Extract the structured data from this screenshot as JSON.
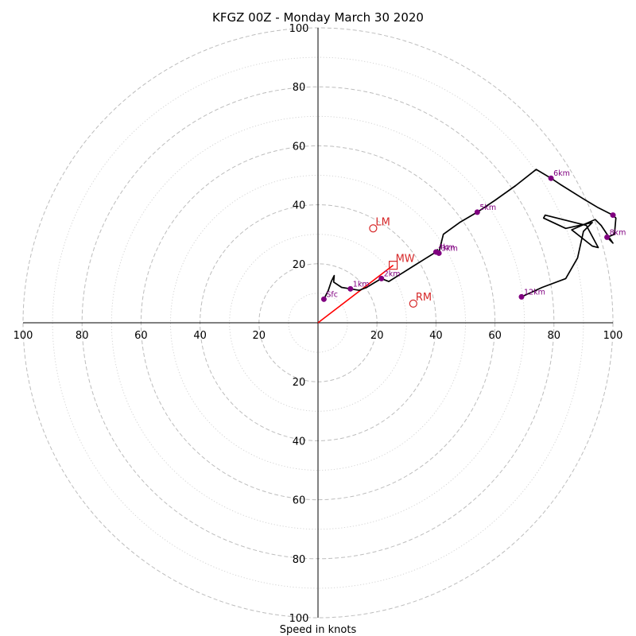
{
  "chart_data": {
    "type": "hodograph",
    "title": "KFGZ 00Z - Monday March 30 2020",
    "xlabel": "Speed in knots",
    "axis_range": [
      -100,
      100
    ],
    "units": "knots",
    "grid": true,
    "tick_labels": [
      "100",
      "80",
      "60",
      "40",
      "20",
      "20",
      "40",
      "60",
      "80",
      "100"
    ],
    "rings": [
      {
        "r": 10,
        "style": "dotted"
      },
      {
        "r": 20,
        "style": "dashed"
      },
      {
        "r": 30,
        "style": "dotted"
      },
      {
        "r": 40,
        "style": "dashed"
      },
      {
        "r": 50,
        "style": "dotted"
      },
      {
        "r": 60,
        "style": "dashed"
      },
      {
        "r": 70,
        "style": "dotted"
      },
      {
        "r": 80,
        "style": "dashed"
      },
      {
        "r": 90,
        "style": "dotted"
      },
      {
        "r": 100,
        "style": "dashed"
      }
    ],
    "hodograph_path": [
      [
        2,
        8
      ],
      [
        3.5,
        11
      ],
      [
        4.5,
        14
      ],
      [
        5.5,
        16
      ],
      [
        5.3,
        13.8
      ],
      [
        8,
        12
      ],
      [
        11,
        11.5
      ],
      [
        14,
        11
      ],
      [
        16.5,
        12
      ],
      [
        19,
        13.5
      ],
      [
        21.5,
        15
      ],
      [
        24,
        14
      ],
      [
        28,
        16.5
      ],
      [
        32,
        19
      ],
      [
        36,
        21.5
      ],
      [
        40,
        24
      ],
      [
        40.5,
        24.8
      ],
      [
        41,
        23.6
      ],
      [
        41.5,
        26
      ],
      [
        42.5,
        30
      ],
      [
        48,
        34
      ],
      [
        54,
        37.5
      ],
      [
        60,
        41.5
      ],
      [
        67,
        46.5
      ],
      [
        74,
        52
      ],
      [
        79,
        49
      ],
      [
        82,
        47
      ],
      [
        90,
        42
      ],
      [
        95,
        39
      ],
      [
        100,
        36.5
      ],
      [
        101,
        35.5
      ],
      [
        100.5,
        30
      ],
      [
        98,
        29
      ],
      [
        100,
        27
      ],
      [
        96,
        33
      ],
      [
        94,
        35
      ],
      [
        86,
        31.5
      ],
      [
        93,
        26
      ],
      [
        95,
        25.5
      ],
      [
        91,
        33
      ],
      [
        77,
        36.5
      ],
      [
        76.5,
        35.5
      ],
      [
        84,
        32
      ],
      [
        93,
        34
      ],
      [
        90,
        31
      ],
      [
        88,
        22
      ],
      [
        84,
        15
      ],
      [
        76,
        12
      ],
      [
        69,
        8.8
      ]
    ],
    "height_markers": [
      {
        "label": "Sfc",
        "u": 2,
        "v": 8
      },
      {
        "label": "1km",
        "u": 11,
        "v": 11.5
      },
      {
        "label": "2km",
        "u": 21.5,
        "v": 15
      },
      {
        "label": "3km",
        "u": 41,
        "v": 23.6
      },
      {
        "label": "4km",
        "u": 40,
        "v": 24
      },
      {
        "label": "5km",
        "u": 54,
        "v": 37.5
      },
      {
        "label": "6km",
        "u": 79,
        "v": 49
      },
      {
        "label": "8km",
        "u": 98,
        "v": 29
      },
      {
        "label": "",
        "u": 100,
        "v": 36.5
      },
      {
        "label": "12km",
        "u": 69,
        "v": 8.8
      }
    ],
    "mean_wind_line": [
      [
        0,
        0
      ],
      [
        25.5,
        19.5
      ]
    ],
    "storm_motion": [
      {
        "label": "LM",
        "u": 18.7,
        "v": 32,
        "marker": "circle"
      },
      {
        "label": "MW",
        "u": 25.5,
        "v": 19.5,
        "marker": "square"
      },
      {
        "label": "RM",
        "u": 32.3,
        "v": 6.5,
        "marker": "circle"
      }
    ],
    "colors": {
      "hodograph": "#000000",
      "height_marker": "#800080",
      "storm_motion": "#d62728",
      "mean_wind_line": "#ff0000",
      "grid": "#b0b0b0"
    }
  }
}
